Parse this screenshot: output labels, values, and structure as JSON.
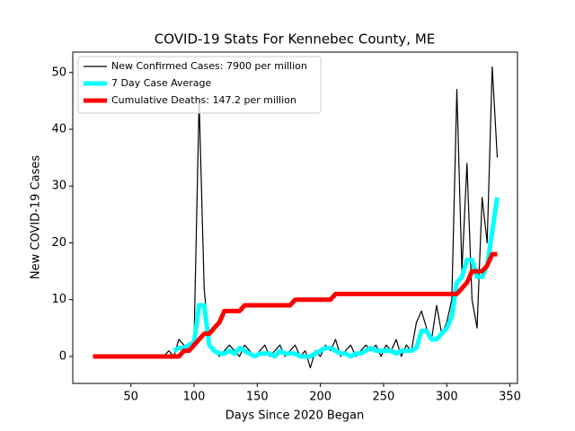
{
  "chart_data": {
    "type": "line",
    "title": "COVID-19 Stats For Kennebec County, ME",
    "x_label": "Days Since 2020 Began",
    "y_label": "New COVID-19 Cases",
    "legend": "upper left",
    "xlim": [
      4,
      356
    ],
    "ylim": [
      -4.75,
      53.6
    ],
    "xticks": [
      50,
      100,
      150,
      200,
      250,
      300,
      350
    ],
    "yticks": [
      0,
      10,
      20,
      30,
      40,
      50
    ],
    "x": [
      20,
      24,
      28,
      32,
      36,
      40,
      44,
      48,
      52,
      56,
      60,
      64,
      68,
      72,
      76,
      80,
      84,
      88,
      92,
      96,
      100,
      104,
      108,
      112,
      116,
      120,
      124,
      128,
      132,
      136,
      140,
      144,
      148,
      152,
      156,
      160,
      164,
      168,
      172,
      176,
      180,
      184,
      188,
      192,
      196,
      200,
      204,
      208,
      212,
      216,
      220,
      224,
      228,
      232,
      236,
      240,
      244,
      248,
      252,
      256,
      260,
      264,
      268,
      272,
      276,
      280,
      284,
      288,
      292,
      296,
      300,
      304,
      308,
      312,
      316,
      320,
      324,
      328,
      332,
      336,
      340
    ],
    "series": [
      {
        "name": "New Confirmed Cases: 7900 per million",
        "color": "#000000",
        "values": [
          0,
          0,
          0,
          0,
          0,
          0,
          0,
          0,
          0,
          0,
          0,
          0,
          0,
          0,
          0,
          1,
          0,
          3,
          2,
          1,
          3,
          45,
          12,
          2,
          1,
          0,
          1,
          2,
          1,
          0,
          2,
          1,
          0,
          1,
          2,
          0,
          1,
          2,
          0,
          1,
          2,
          0,
          1,
          -2,
          1,
          0,
          2,
          1,
          3,
          0,
          1,
          2,
          0,
          1,
          2,
          1,
          2,
          0,
          2,
          1,
          3,
          0,
          2,
          1,
          6,
          8,
          5,
          3,
          9,
          4,
          6,
          10,
          47,
          15,
          34,
          10,
          5,
          28,
          20,
          51,
          35
        ]
      },
      {
        "name": "7 Day Case Average",
        "color": "#00ffff",
        "values": [
          null,
          null,
          null,
          null,
          null,
          null,
          null,
          null,
          null,
          null,
          null,
          null,
          null,
          null,
          null,
          null,
          1,
          1.5,
          1.5,
          2,
          2.5,
          9,
          9,
          2,
          1,
          0.5,
          0.5,
          1,
          0.5,
          1.5,
          1,
          0.5,
          0,
          0.5,
          0.5,
          0.5,
          0,
          1,
          0.5,
          0.5,
          0.5,
          0,
          0,
          0,
          0.5,
          1,
          1.5,
          1.5,
          1,
          0.5,
          0.5,
          0,
          0.5,
          0.5,
          1,
          1.5,
          1,
          1,
          1,
          1,
          0.5,
          1,
          1,
          1,
          1.5,
          4.5,
          4.5,
          3,
          3,
          4,
          5,
          7,
          13,
          14,
          17,
          17,
          14,
          14,
          16,
          22,
          28
        ]
      },
      {
        "name": "Cumulative Deaths: 147.2 per million",
        "color": "#ff0000",
        "values": [
          0,
          0,
          0,
          0,
          0,
          0,
          0,
          0,
          0,
          0,
          0,
          0,
          0,
          0,
          0,
          0,
          0,
          0,
          1,
          1,
          2,
          3,
          4,
          4,
          5,
          6,
          8,
          8,
          8,
          8,
          9,
          9,
          9,
          9,
          9,
          9,
          9,
          9,
          9,
          9,
          10,
          10,
          10,
          10,
          10,
          10,
          10,
          10,
          11,
          11,
          11,
          11,
          11,
          11,
          11,
          11,
          11,
          11,
          11,
          11,
          11,
          11,
          11,
          11,
          11,
          11,
          11,
          11,
          11,
          11,
          11,
          11,
          11,
          12,
          13,
          15,
          15,
          15,
          16,
          18,
          18
        ]
      }
    ]
  }
}
